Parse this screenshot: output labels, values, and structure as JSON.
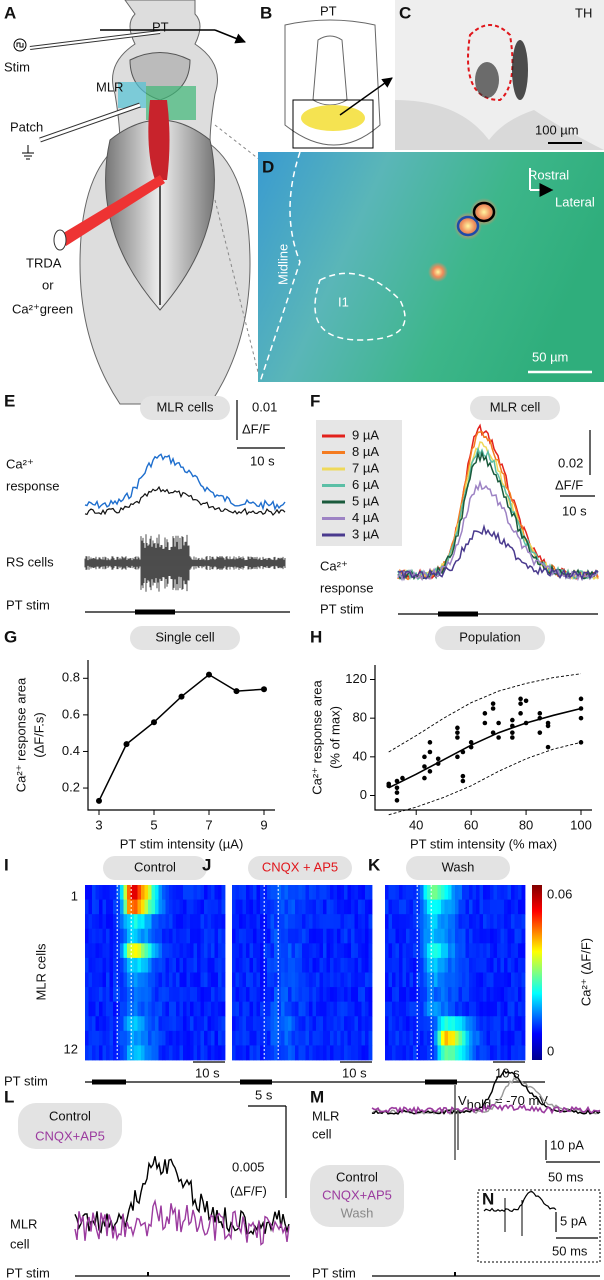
{
  "panels": {
    "A": {
      "letter": "A",
      "pt": "PT",
      "stim": "Stim",
      "mlr": "MLR",
      "patch": "Patch",
      "trda": "TRDA",
      "or": "or",
      "ca_green": "Ca²⁺green"
    },
    "B": {
      "letter": "B",
      "pt": "PT"
    },
    "C": {
      "letter": "C",
      "th": "TH",
      "scale": "100 µm"
    },
    "D": {
      "letter": "D",
      "rostral": "Rostral",
      "lateral": "Lateral",
      "midline": "Midline",
      "region": "I1",
      "scale": "50 µm"
    },
    "E": {
      "letter": "E",
      "title": "MLR cells",
      "scale_amp": "0.01",
      "scale_unit": "ΔF/F",
      "scale_time": "10 s",
      "ca_label": [
        "Ca²⁺",
        "response"
      ],
      "rs_label": "RS cells",
      "stim_label": "PT stim"
    },
    "F": {
      "letter": "F",
      "title": "MLR cell",
      "legend": [
        {
          "label": "9 µA",
          "color": "#e2211c"
        },
        {
          "label": "8 µA",
          "color": "#f47b20"
        },
        {
          "label": "7 µA",
          "color": "#efd95a"
        },
        {
          "label": "6 µA",
          "color": "#5bbfa6"
        },
        {
          "label": "5 µA",
          "color": "#1a5a3c"
        },
        {
          "label": "4 µA",
          "color": "#9d83c4"
        },
        {
          "label": "3 µA",
          "color": "#4a3a8e"
        }
      ],
      "scale_amp": "0.02",
      "scale_unit": "ΔF/F",
      "scale_time": "10 s",
      "ca_label": [
        "Ca²⁺",
        "response"
      ],
      "stim_label": "PT stim"
    },
    "G": {
      "letter": "G"
    },
    "H": {
      "letter": "H"
    },
    "I": {
      "letter": "I",
      "title": "Control"
    },
    "J": {
      "letter": "J",
      "title": "CNQX + AP5"
    },
    "K": {
      "letter": "K",
      "title": "Wash"
    },
    "heatmap": {
      "y_label": "MLR cells",
      "first_row": "1",
      "last_row": "12",
      "colorbar_max": "0.06",
      "colorbar_min": "0",
      "colorbar_label": "Ca²⁺ (ΔF/F)",
      "scale_time": "10 s",
      "stim_label": "PT stim"
    },
    "L": {
      "letter": "L",
      "legend": [
        "Control",
        "CNQX+AP5"
      ],
      "scale_time": "5 s",
      "scale_amp": "0.005",
      "scale_unit": "(ΔF/F)",
      "cell_label": [
        "MLR",
        "cell"
      ],
      "stim_label": "PT stim"
    },
    "M": {
      "letter": "M",
      "vhold": [
        "V",
        "hold",
        " = -70 mV"
      ],
      "cell_label": [
        "MLR",
        "cell"
      ],
      "scale_amp": "10 pA",
      "scale_time": "50 ms",
      "legend": [
        "Control",
        "CNQX+AP5",
        "Wash"
      ],
      "stim_label": "PT stim"
    },
    "N": {
      "letter": "N",
      "scale_amp": "5 pA",
      "scale_time": "50 ms"
    }
  },
  "chart_data": [
    {
      "type": "line",
      "title": "Single cell",
      "x_label": "PT stim intensity (µA)",
      "y_label": [
        "Ca²⁺ response area",
        "(ΔF/F.s)"
      ],
      "x": [
        3,
        4,
        5,
        6,
        7,
        8,
        9
      ],
      "values": [
        0.13,
        0.44,
        0.56,
        0.7,
        0.82,
        0.73,
        0.74
      ],
      "color": "#000000",
      "xlim": [
        2.6,
        9.4
      ],
      "ylim": [
        0.08,
        0.9
      ],
      "xticks": [
        3,
        5,
        7,
        9
      ],
      "yticks": [
        0.2,
        0.4,
        0.6,
        0.8
      ]
    },
    {
      "type": "scatter",
      "title": "Population",
      "x_label": "PT stim intensity (% max)",
      "y_label": [
        "Ca²⁺ response area",
        "(% of max)"
      ],
      "xlim": [
        25,
        104
      ],
      "ylim": [
        -15,
        135
      ],
      "xticks": [
        40,
        60,
        80,
        100
      ],
      "yticks": [
        0,
        40,
        80,
        120
      ],
      "series": [
        {
          "style": "points",
          "color": "#000000",
          "x": [
            30,
            30,
            33,
            33,
            33,
            33,
            35,
            43,
            43,
            43,
            45,
            45,
            45,
            48,
            48,
            55,
            55,
            55,
            55,
            57,
            57,
            57,
            60,
            60,
            65,
            65,
            68,
            68,
            68,
            70,
            70,
            75,
            75,
            75,
            75,
            78,
            78,
            78,
            80,
            80,
            85,
            85,
            85,
            88,
            88,
            88,
            100,
            100,
            100,
            100
          ],
          "values": [
            10,
            12,
            8,
            15,
            -5,
            3,
            18,
            18,
            30,
            40,
            45,
            55,
            25,
            38,
            33,
            40,
            60,
            65,
            70,
            20,
            15,
            45,
            55,
            50,
            75,
            85,
            90,
            95,
            65,
            60,
            75,
            78,
            72,
            60,
            65,
            100,
            95,
            85,
            98,
            75,
            65,
            80,
            85,
            75,
            72,
            50,
            100,
            90,
            80,
            55
          ]
        },
        {
          "style": "solid",
          "color": "#000000",
          "x": [
            30,
            40,
            50,
            60,
            70,
            80,
            90,
            100
          ],
          "values": [
            8,
            22,
            37,
            52,
            65,
            75,
            83,
            90
          ]
        },
        {
          "style": "dashed",
          "color": "#000000",
          "x": [
            30,
            40,
            50,
            60,
            70,
            80,
            90,
            100
          ],
          "values": [
            45,
            62,
            80,
            96,
            108,
            116,
            122,
            126
          ]
        },
        {
          "style": "dashed",
          "color": "#000000",
          "x": [
            30,
            40,
            50,
            60,
            70,
            80,
            90,
            100
          ],
          "values": [
            -20,
            -12,
            -2,
            10,
            25,
            38,
            48,
            55
          ]
        }
      ]
    }
  ]
}
